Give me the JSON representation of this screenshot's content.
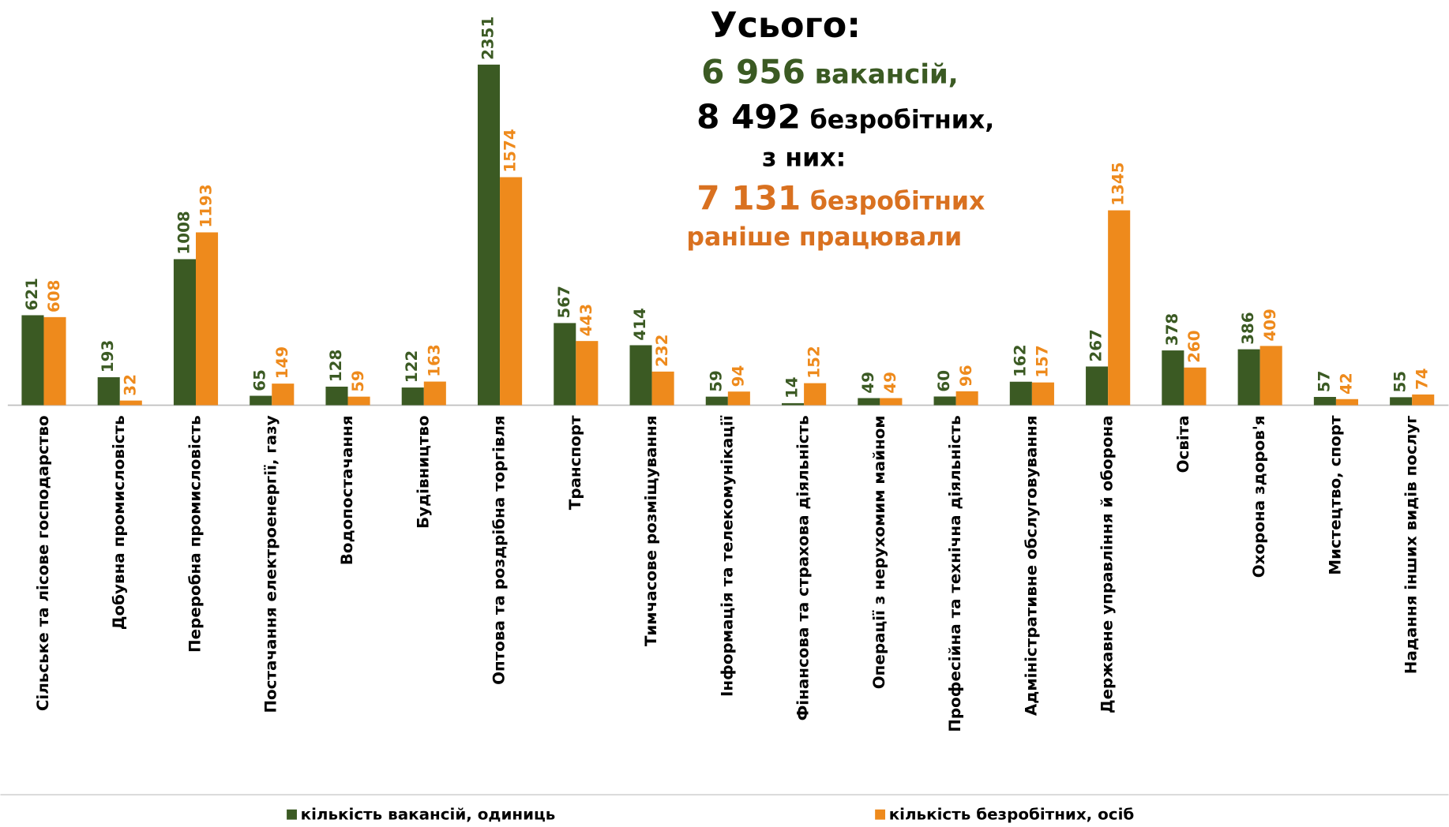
{
  "chart_data": {
    "type": "bar",
    "title": "Усього:",
    "summary": {
      "vacancies_number": "6 956",
      "vacancies_text": "вакансій,",
      "unemployed_number": "8 492",
      "unemployed_text": "безробітних,",
      "of_them": "з них:",
      "worked_number": "7 131",
      "worked_text": "безробітних",
      "worked_text2": "раніше працювали"
    },
    "categories": [
      "Сільське та лісове господарство",
      "Добувна промисловість",
      "Переробна промисловість",
      "Постачання електроенергії, газу",
      "Водопостачання",
      "Будівництво",
      "Оптова та роздрібна торгівля",
      "Транспорт",
      "Тимчасове розміщування",
      "Інформація та телекомунікації",
      "Фінансова та страхова діяльність",
      "Операції з нерухомим майном",
      "Професійна та технічна діяльність",
      "Адміністративне обслуговування",
      "Державне управління й оборона",
      "Освіта",
      "Охорона здоров'я",
      "Мистецтво, спорт",
      "Надання інших видів послуг"
    ],
    "series": [
      {
        "name": "кількість вакансій, одиниць",
        "color": "#3b5a23",
        "values": [
          621,
          193,
          1008,
          65,
          128,
          122,
          2351,
          567,
          414,
          59,
          14,
          49,
          60,
          162,
          267,
          378,
          386,
          57,
          55
        ]
      },
      {
        "name": "кількість безробітних, осіб",
        "color": "#ee8a1c",
        "values": [
          608,
          32,
          1193,
          149,
          59,
          163,
          1574,
          443,
          232,
          94,
          152,
          49,
          96,
          157,
          1345,
          260,
          409,
          42,
          74
        ]
      }
    ],
    "grid": false,
    "legend": "bottom"
  }
}
